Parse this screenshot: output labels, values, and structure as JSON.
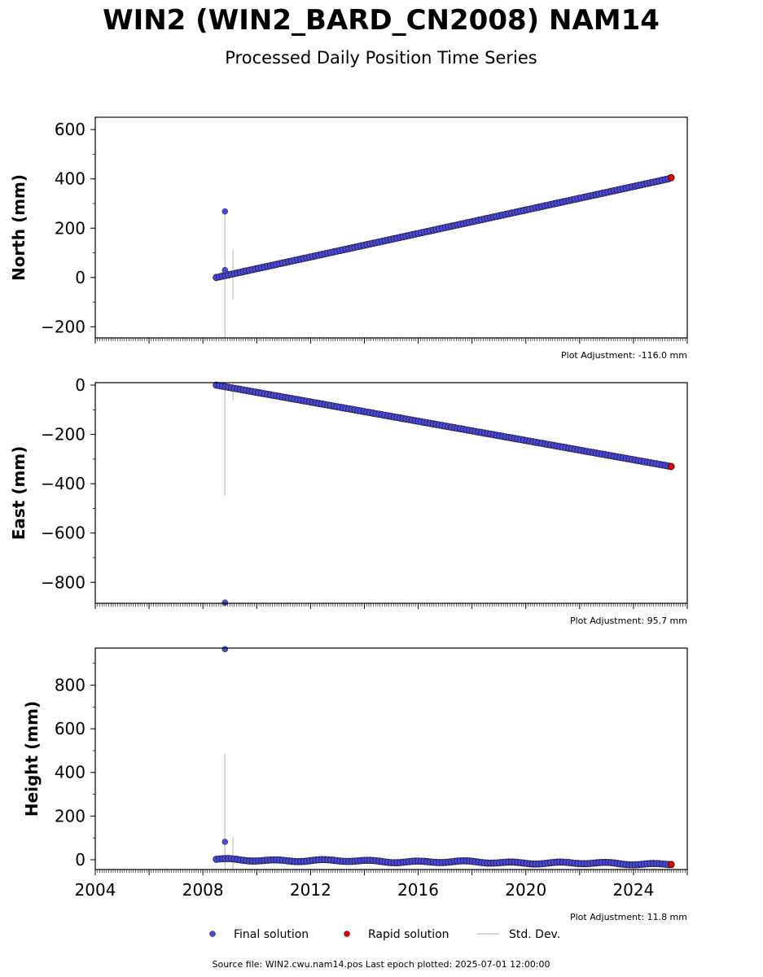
{
  "title": "WIN2 (WIN2_BARD_CN2008) NAM14",
  "subtitle": "Processed Daily Position Time Series",
  "footer": "Source file: WIN2.cwu.nam14.pos  Last epoch plotted: 2025-07-01 12:00:00",
  "legend": {
    "final": "Final solution",
    "rapid": "Rapid solution",
    "std": "Std. Dev."
  },
  "colors": {
    "final": "#4a4adb",
    "final_edge": "#1a1a3a",
    "rapid": "#e00000",
    "std": "#cccccc"
  },
  "chart_data": [
    {
      "type": "scatter",
      "ylabel": "North (mm)",
      "adjustment": "Plot Adjustment: -116.0 mm",
      "xlim": [
        2004,
        2026
      ],
      "ylim": [
        -245,
        650
      ],
      "yticks": [
        -200,
        0,
        200,
        400,
        600
      ],
      "ytick_labels": [
        "−200",
        "0",
        "200",
        "400",
        "600"
      ],
      "trend": {
        "start": [
          2008.5,
          0
        ],
        "end": [
          2025.3,
          400
        ]
      },
      "outliers": [
        {
          "x": 2008.82,
          "y": 268,
          "err": 0
        },
        {
          "x": 2008.82,
          "y": 30,
          "err": 0
        },
        {
          "x": 2008.82,
          "y": 10,
          "err": 540
        },
        {
          "x": 2009.12,
          "y": 12,
          "err": 205
        }
      ],
      "rapid": {
        "x": 2025.4,
        "y": 405
      }
    },
    {
      "type": "scatter",
      "ylabel": "East (mm)",
      "adjustment": "Plot Adjustment: 95.7 mm",
      "xlim": [
        2004,
        2026
      ],
      "ylim": [
        -885,
        10
      ],
      "yticks": [
        -800,
        -600,
        -400,
        -200,
        0
      ],
      "ytick_labels": [
        "−800",
        "−600",
        "−400",
        "−200",
        "0"
      ],
      "trend": {
        "start": [
          2008.5,
          0
        ],
        "end": [
          2025.3,
          -328
        ]
      },
      "outliers": [
        {
          "x": 2008.82,
          "y": -882,
          "err": 0
        },
        {
          "x": 2008.82,
          "y": -8,
          "err": 880
        },
        {
          "x": 2009.12,
          "y": -10,
          "err": 105
        }
      ],
      "rapid": {
        "x": 2025.4,
        "y": -330
      }
    },
    {
      "type": "scatter",
      "ylabel": "Height (mm)",
      "adjustment": "Plot Adjustment: 11.8 mm",
      "xlim": [
        2004,
        2026
      ],
      "ylim": [
        -45,
        970
      ],
      "yticks": [
        0,
        200,
        400,
        600,
        800
      ],
      "ytick_labels": [
        "0",
        "200",
        "400",
        "600",
        "800"
      ],
      "xticks": [
        2004,
        2008,
        2012,
        2016,
        2020,
        2024
      ],
      "trend": {
        "start": [
          2008.5,
          0
        ],
        "end": [
          2025.3,
          -20
        ]
      },
      "outliers": [
        {
          "x": 2008.82,
          "y": 965,
          "err": 0
        },
        {
          "x": 2008.82,
          "y": 82,
          "err": 0
        },
        {
          "x": 2008.82,
          "y": 0,
          "err": 970
        },
        {
          "x": 2008.82,
          "y": 40,
          "err": 195
        },
        {
          "x": 2009.12,
          "y": 0,
          "err": 210
        }
      ],
      "rapid": {
        "x": 2025.4,
        "y": -22
      }
    }
  ]
}
